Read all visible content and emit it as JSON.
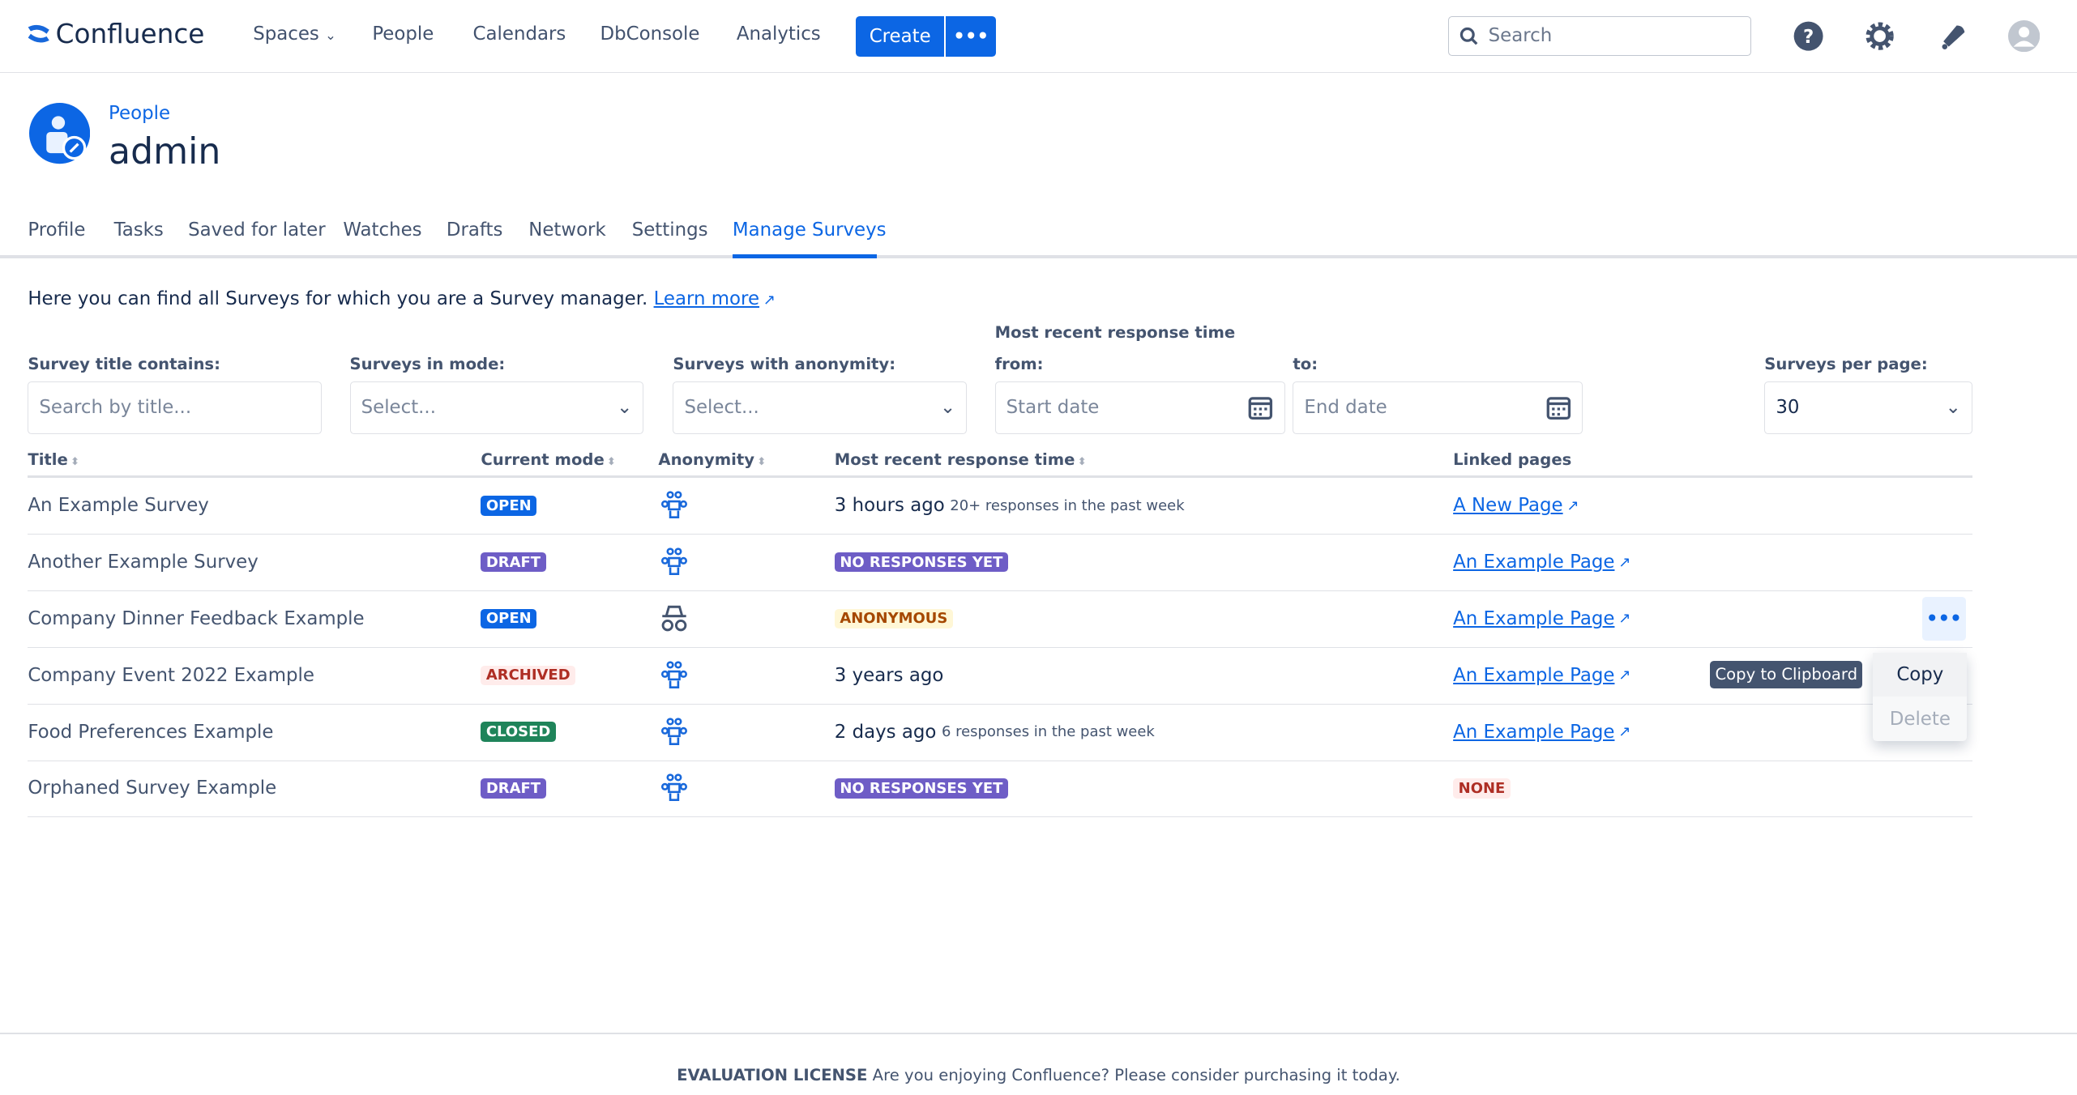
{
  "nav": {
    "logo": "Confluence",
    "items": [
      "Spaces",
      "People",
      "Calendars",
      "DbConsole",
      "Analytics"
    ],
    "create": "Create",
    "more": "•••",
    "search_placeholder": "Search"
  },
  "header": {
    "breadcrumb": "People",
    "title": "admin"
  },
  "tabs": [
    "Profile",
    "Tasks",
    "Saved for later",
    "Watches",
    "Drafts",
    "Network",
    "Settings",
    "Manage Surveys"
  ],
  "active_tab": "Manage Surveys",
  "intro": {
    "text": "Here you can find all Surveys for which you are a Survey manager.",
    "link": "Learn more"
  },
  "filters": {
    "title_label": "Survey title contains:",
    "title_placeholder": "Search by title...",
    "mode_label": "Surveys in mode:",
    "mode_value": "Select...",
    "anon_label": "Surveys with anonymity:",
    "anon_value": "Select...",
    "time_group_label": "Most recent response time",
    "from_label": "from:",
    "from_placeholder": "Start date",
    "to_label": "to:",
    "to_placeholder": "End date",
    "per_page_label": "Surveys per page:",
    "per_page_value": "30"
  },
  "columns": [
    "Title",
    "Current mode",
    "Anonymity",
    "Most recent response time",
    "Linked pages"
  ],
  "rows": [
    {
      "title": "An Example Survey",
      "mode": "OPEN",
      "anon": "people-icon",
      "time": "3 hours ago",
      "time_note": "20+ responses in the past week",
      "page": "A New Page"
    },
    {
      "title": "Another Example Survey",
      "mode": "DRAFT",
      "anon": "people-icon",
      "time_badge": "NO RESPONSES YET",
      "page": "An Example Page"
    },
    {
      "title": "Company Dinner Feedback Example",
      "mode": "OPEN",
      "anon": "incognito-icon",
      "time_badge": "ANONYMOUS",
      "page": "An Example Page"
    },
    {
      "title": "Company Event 2022 Example",
      "mode": "ARCHIVED",
      "anon": "people-icon",
      "time": "3 years ago",
      "page": "An Example Page"
    },
    {
      "title": "Food Preferences Example",
      "mode": "CLOSED",
      "anon": "people-icon",
      "time": "2 days ago",
      "time_note": "6 responses in the past week",
      "page": "An Example Page"
    },
    {
      "title": "Orphaned Survey Example",
      "mode": "DRAFT",
      "anon": "people-icon",
      "time_badge": "NO RESPONSES YET",
      "page_badge": "NONE"
    }
  ],
  "actions": {
    "more": "•••",
    "tooltip": "Copy to Clipboard",
    "menu": [
      "Copy",
      "Delete"
    ]
  },
  "footer": {
    "bold": "EVALUATION LICENSE",
    "text": "Are you enjoying Confluence? Please consider purchasing it today."
  },
  "colors": {
    "primary": "#0c66e4",
    "open": "#0c66e4",
    "draft": "#6e5dc6",
    "closed": "#1f845a",
    "archived_bg": "#ffeceb",
    "archived_fg": "#ae2e24",
    "anonymous_bg": "#fff7d6",
    "anonymous_fg": "#a54800"
  }
}
